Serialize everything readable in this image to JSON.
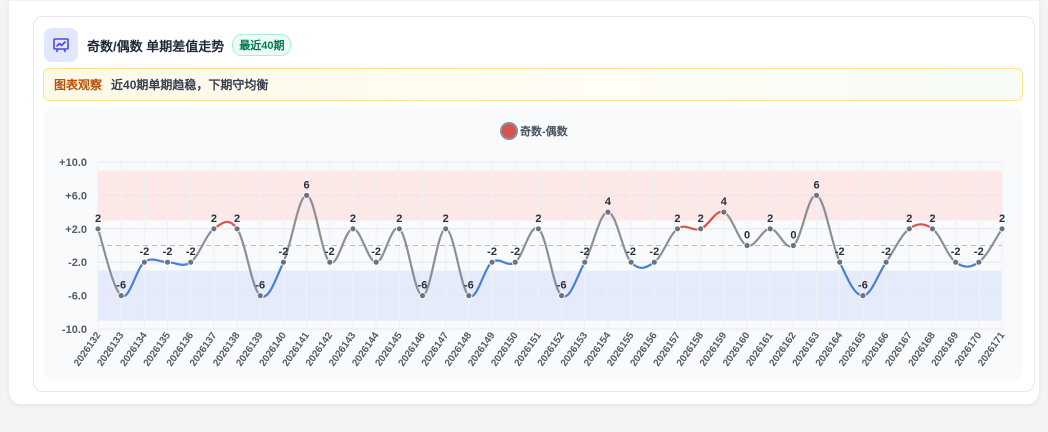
{
  "header": {
    "icon": "chart-icon",
    "title": "奇数/偶数 单期差值走势",
    "badge": "最近40期"
  },
  "observation": {
    "tag": "图表观察",
    "text": "近40期单期趋稳，下期守均衡"
  },
  "colors": {
    "positive": "#d9534f",
    "negative": "#4a7fd4",
    "neutral": "#8a8f99",
    "accent": "#4f46e5"
  },
  "chart_data": {
    "type": "line",
    "legend": [
      "奇数-偶数"
    ],
    "legend_position": "top-center",
    "categories": [
      "2026132",
      "2026133",
      "2026134",
      "2026135",
      "2026136",
      "2026137",
      "2026138",
      "2026139",
      "2026140",
      "2026141",
      "2026142",
      "2026143",
      "2026144",
      "2026145",
      "2026146",
      "2026147",
      "2026148",
      "2026149",
      "2026150",
      "2026151",
      "2026152",
      "2026153",
      "2026154",
      "2026155",
      "2026156",
      "2026157",
      "2026158",
      "2026159",
      "2026160",
      "2026161",
      "2026162",
      "2026163",
      "2026164",
      "2026165",
      "2026166",
      "2026167",
      "2026168",
      "2026169",
      "2026170",
      "2026171"
    ],
    "series": [
      {
        "name": "奇数-偶数",
        "values": [
          2,
          -6,
          -2,
          -2,
          -2,
          2,
          2,
          -6,
          -2,
          6,
          -2,
          2,
          -2,
          2,
          -6,
          2,
          -6,
          -2,
          -2,
          2,
          -6,
          -2,
          4,
          -2,
          -2,
          2,
          2,
          4,
          0,
          2,
          0,
          6,
          -2,
          -6,
          -2,
          2,
          2,
          -2,
          -2,
          2
        ]
      }
    ],
    "yticks": [
      "+10.0",
      "+6.0",
      "+2.0",
      "-2.0",
      "-6.0",
      "-10.0"
    ],
    "ylim": [
      -10,
      10
    ],
    "bands": [
      {
        "from": 3,
        "to": 9,
        "color": "#fde8e8"
      },
      {
        "from": -9,
        "to": -3,
        "color": "#e6ebfb"
      }
    ],
    "reference_line": 0,
    "grid": true
  }
}
